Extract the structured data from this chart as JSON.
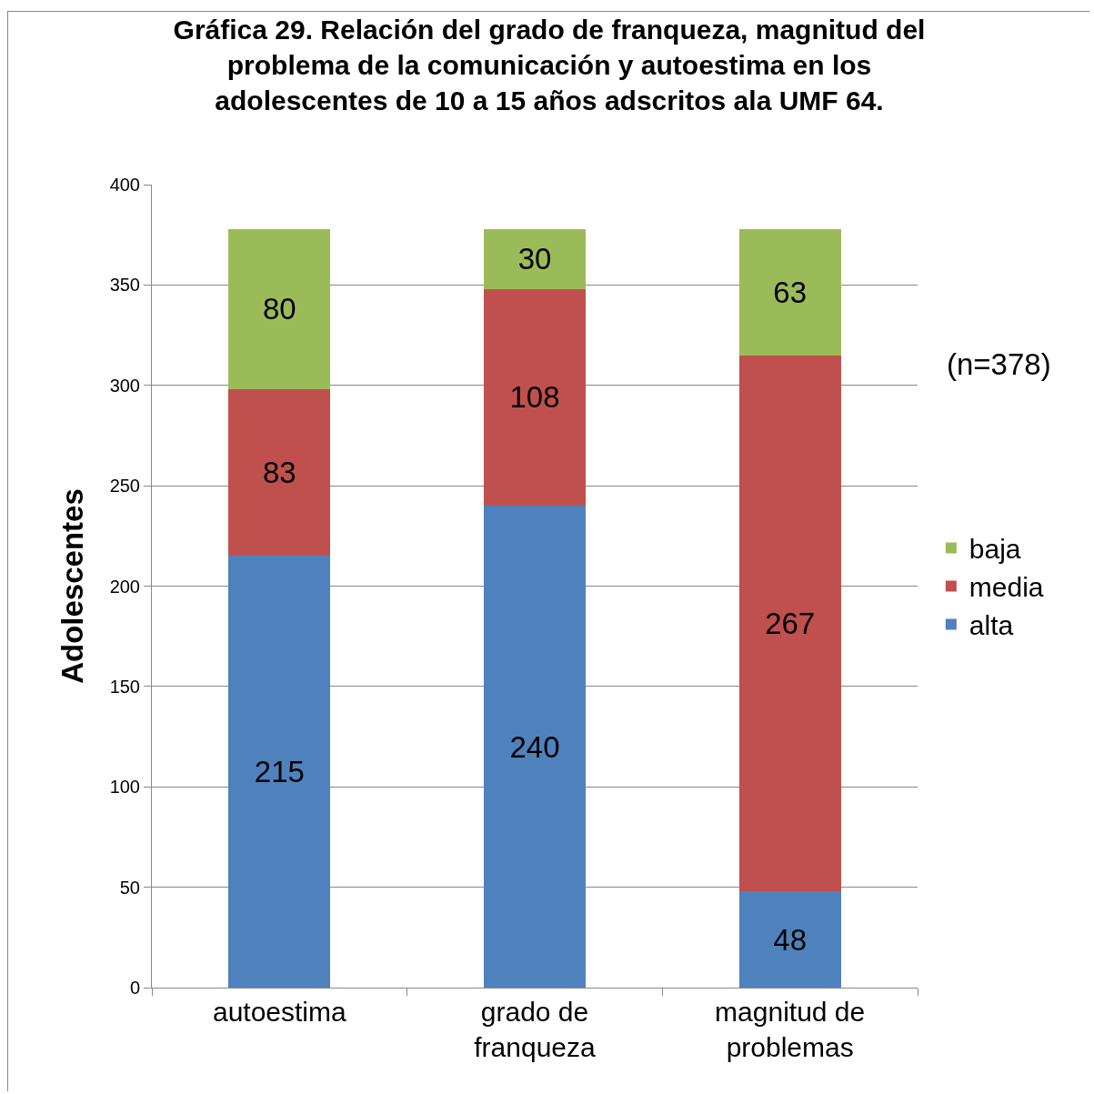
{
  "chart_data": {
    "type": "bar",
    "stacked": true,
    "title": "Gráfica 29. Relación del grado de franqueza, magnitud del\nproblema de la comunicación y autoestima en los\nadolescentes de 10 a 15 años adscritos ala UMF 64.",
    "ylabel": "Adolescentes",
    "categories": [
      "autoestima",
      "grado de\nfranqueza",
      "magnitud de\nproblemas"
    ],
    "series": [
      {
        "name": "alta",
        "color": "#4f81bd",
        "values": [
          215,
          240,
          48
        ]
      },
      {
        "name": "media",
        "color": "#c0504d",
        "values": [
          83,
          108,
          267
        ]
      },
      {
        "name": "baja",
        "color": "#9bbb59",
        "values": [
          80,
          30,
          63
        ]
      }
    ],
    "ylim": [
      0,
      400
    ],
    "yticks": [
      0,
      50,
      100,
      150,
      200,
      250,
      300,
      350,
      400
    ],
    "grid": "y",
    "legend": "right",
    "data_labels": true,
    "annotations": [
      "(n=378)"
    ]
  }
}
